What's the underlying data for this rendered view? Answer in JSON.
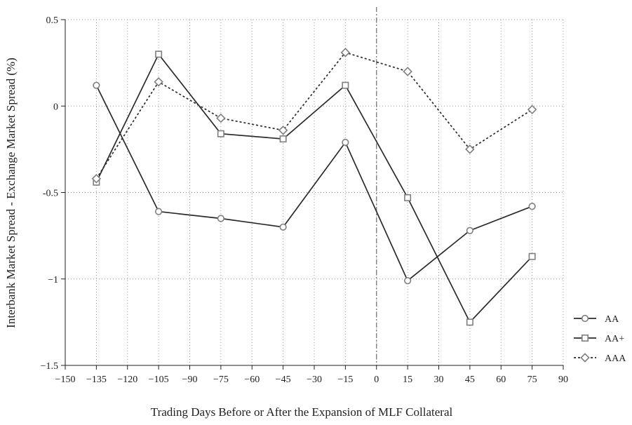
{
  "chart_data": {
    "type": "line",
    "xlabel": "Trading Days Before or After the Expansion of MLF Collateral",
    "ylabel": "Interbank Market Spread - Exchange Market Spread (%)",
    "xlim": [
      -150,
      90
    ],
    "ylim": [
      -1.5,
      0.5
    ],
    "x_ticks": [
      -150,
      -135,
      -120,
      -105,
      -90,
      -75,
      -60,
      -45,
      -30,
      -15,
      0,
      15,
      30,
      45,
      60,
      75,
      90
    ],
    "x_tick_labels": [
      "−150",
      "−135",
      "−120",
      "−105",
      "−90",
      "−75",
      "−60",
      "−45",
      "−30",
      "−15",
      "0",
      "15",
      "30",
      "45",
      "60",
      "75",
      "90"
    ],
    "y_ticks": [
      0.5,
      0,
      -0.5,
      -1,
      -1.5
    ],
    "y_tick_labels": [
      "0.5",
      "0",
      "-0.5",
      "−1",
      "−1.5"
    ],
    "grid": "dotted",
    "event_line_x": 0,
    "legend_position": "right",
    "x": [
      -135,
      -105,
      -75,
      -45,
      -15,
      15,
      45,
      75
    ],
    "series": [
      {
        "name": "AA",
        "marker": "circle",
        "line_style": "solid",
        "color": "#2b2b2b",
        "values": [
          0.12,
          -0.61,
          -0.65,
          -0.7,
          -0.21,
          -1.01,
          -0.72,
          -0.58
        ]
      },
      {
        "name": "AA+",
        "marker": "square",
        "line_style": "solid",
        "color": "#2b2b2b",
        "values": [
          -0.44,
          0.3,
          -0.16,
          -0.19,
          0.12,
          -0.53,
          -1.25,
          -0.87
        ]
      },
      {
        "name": "AAA",
        "marker": "diamond",
        "line_style": "dotted",
        "color": "#2b2b2b",
        "values": [
          -0.42,
          0.14,
          -0.07,
          -0.14,
          0.31,
          0.2,
          -0.25,
          -0.02
        ]
      }
    ]
  }
}
